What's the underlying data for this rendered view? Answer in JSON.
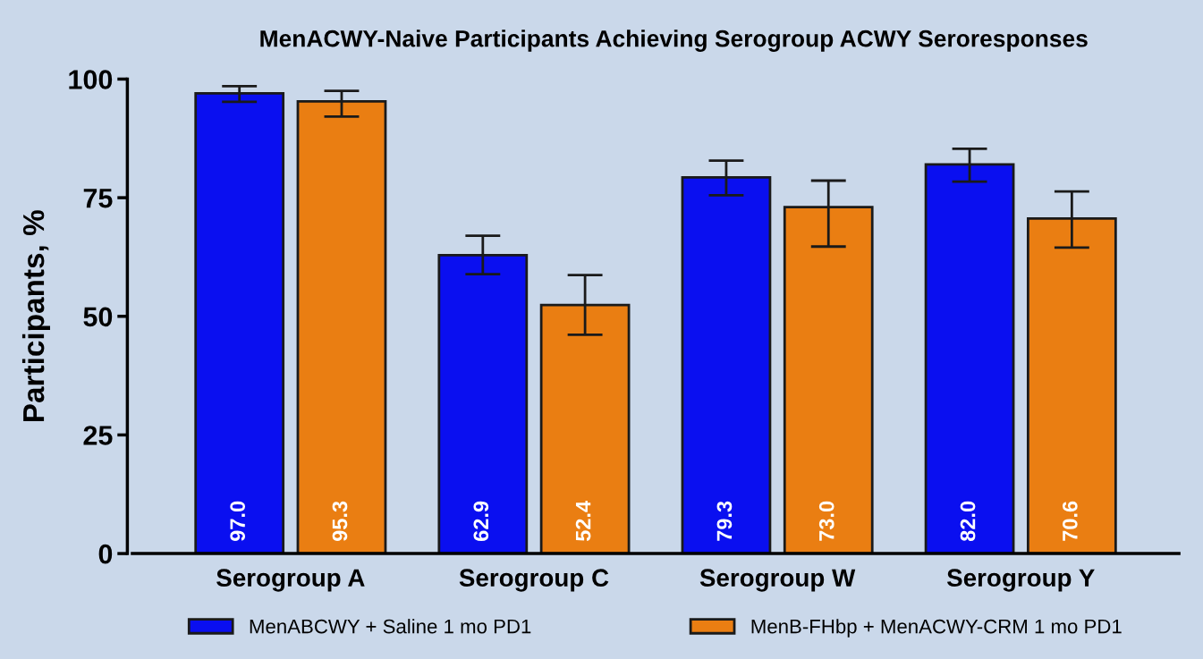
{
  "chart_data": {
    "type": "bar",
    "title": "MenACWY-Naive Participants Achieving Serogroup ACWY Seroresponses",
    "ylabel": "Participants, %",
    "categories": [
      "Serogroup A",
      "Serogroup C",
      "Serogroup W",
      "Serogroup Y"
    ],
    "series": [
      {
        "name": "MenABCWY + Saline 1 mo PD1",
        "color": "#0a0ff0",
        "values": [
          97.0,
          62.9,
          79.3,
          82.0
        ],
        "value_labels": [
          "97.0",
          "62.9",
          "79.3",
          "82.0"
        ],
        "errors": [
          [
            95.2,
            98.5
          ],
          [
            58.9,
            67.0
          ],
          [
            75.5,
            82.8
          ],
          [
            78.4,
            85.3
          ]
        ]
      },
      {
        "name": "MenB-FHbp + MenACWY-CRM 1 mo PD1",
        "color": "#ea7e12",
        "values": [
          95.3,
          52.4,
          73.0,
          70.6
        ],
        "value_labels": [
          "95.3",
          "52.4",
          "73.0",
          "70.6"
        ],
        "errors": [
          [
            92.1,
            97.5
          ],
          [
            46.1,
            58.7
          ],
          [
            64.7,
            78.6
          ],
          [
            64.5,
            76.3
          ]
        ]
      }
    ],
    "ylim": [
      0,
      100
    ],
    "yticks": [
      0,
      25,
      50,
      75,
      100
    ],
    "grid": false,
    "legend": "bottom"
  }
}
